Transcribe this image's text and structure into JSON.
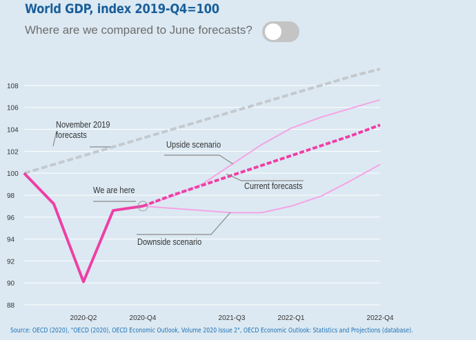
{
  "header": {
    "title": "World GDP, index 2019-Q4=100",
    "subtitle": "Where are we compared to June forecasts?",
    "toggle_on": false
  },
  "source": "Source: OECD (2020), \"OECD (2020), OECD Economic Outlook, Volume 2020 Issue 2\", OECD Economic Outlook: Statistics and Projections (database).",
  "colors": {
    "background": "#dce9f2",
    "actual": "#ee3fa6",
    "current_forecast": "#ee3fa6",
    "scenarios": "#f5a3e6",
    "pre_covid": "#c3c9ce",
    "annotation_line": "#888888"
  },
  "chart_data": {
    "type": "line",
    "title": "World GDP, index 2019-Q4=100",
    "ylim": [
      87.5,
      109
    ],
    "yticks": [
      88,
      90,
      92,
      94,
      96,
      98,
      100,
      102,
      104,
      106,
      108
    ],
    "periods": [
      "2019-Q4",
      "2020-Q1",
      "2020-Q2",
      "2020-Q3",
      "2020-Q4",
      "2021-Q1",
      "2021-Q2",
      "2021-Q3",
      "2021-Q4",
      "2022-Q1",
      "2022-Q2",
      "2022-Q3",
      "2022-Q4"
    ],
    "xtick_labels": [
      "2020-Q2",
      "2020-Q4",
      "2021-Q3",
      "2022-Q1",
      "2022-Q4"
    ],
    "series": [
      {
        "id": "pre_covid",
        "values": [
          100,
          100.8,
          101.6,
          102.4,
          103.2,
          104.0,
          104.8,
          105.6,
          106.4,
          107.2,
          108.0,
          108.8,
          109.5
        ]
      },
      {
        "id": "actual",
        "values": [
          100,
          97.2,
          90.1,
          96.6,
          97.0
        ]
      },
      {
        "id": "current",
        "values": [
          null,
          null,
          null,
          null,
          97.0,
          98.0,
          98.9,
          99.8,
          100.7,
          101.6,
          102.5,
          103.4,
          104.4
        ]
      },
      {
        "id": "upside",
        "values": [
          null,
          null,
          null,
          null,
          97.0,
          97.9,
          99.0,
          100.8,
          102.6,
          104.1,
          105.1,
          105.9,
          106.7
        ]
      },
      {
        "id": "downside",
        "values": [
          null,
          null,
          null,
          null,
          97.0,
          96.8,
          96.6,
          96.4,
          96.4,
          97.0,
          97.9,
          99.3,
          100.8
        ]
      }
    ],
    "annotations": [
      {
        "text_lines": [
          "November 2019",
          "forecasts"
        ]
      },
      {
        "text_lines": [
          "Upside scenario"
        ]
      },
      {
        "text_lines": [
          "Current forecasts"
        ]
      },
      {
        "text_lines": [
          "We are here"
        ]
      },
      {
        "text_lines": [
          "Downside scenario"
        ]
      }
    ]
  }
}
